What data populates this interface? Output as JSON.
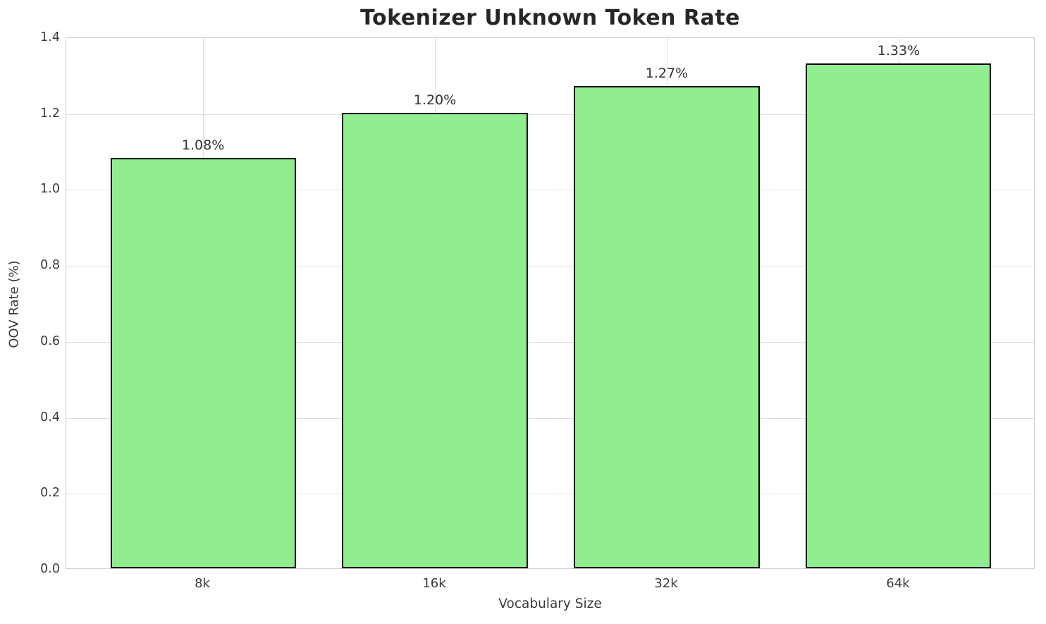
{
  "chart_data": {
    "type": "bar",
    "title": "Tokenizer Unknown Token Rate",
    "xlabel": "Vocabulary Size",
    "ylabel": "OOV Rate (%)",
    "categories": [
      "8k",
      "16k",
      "32k",
      "64k"
    ],
    "values": [
      1.08,
      1.2,
      1.27,
      1.33
    ],
    "bar_labels": [
      "1.08%",
      "1.20%",
      "1.27%",
      "1.33%"
    ],
    "ylim": [
      0.0,
      1.4
    ],
    "yticks": [
      0.0,
      0.2,
      0.4,
      0.6,
      0.8,
      1.0,
      1.2,
      1.4
    ],
    "grid": true,
    "legend": "none",
    "bar_color": "#90EE90",
    "bar_edge_color": "#000000",
    "grid_color": "#dedede",
    "spine_color": "#d0d0d0",
    "tick_text_color": "#3a3a3a",
    "title_color": "#262626"
  }
}
